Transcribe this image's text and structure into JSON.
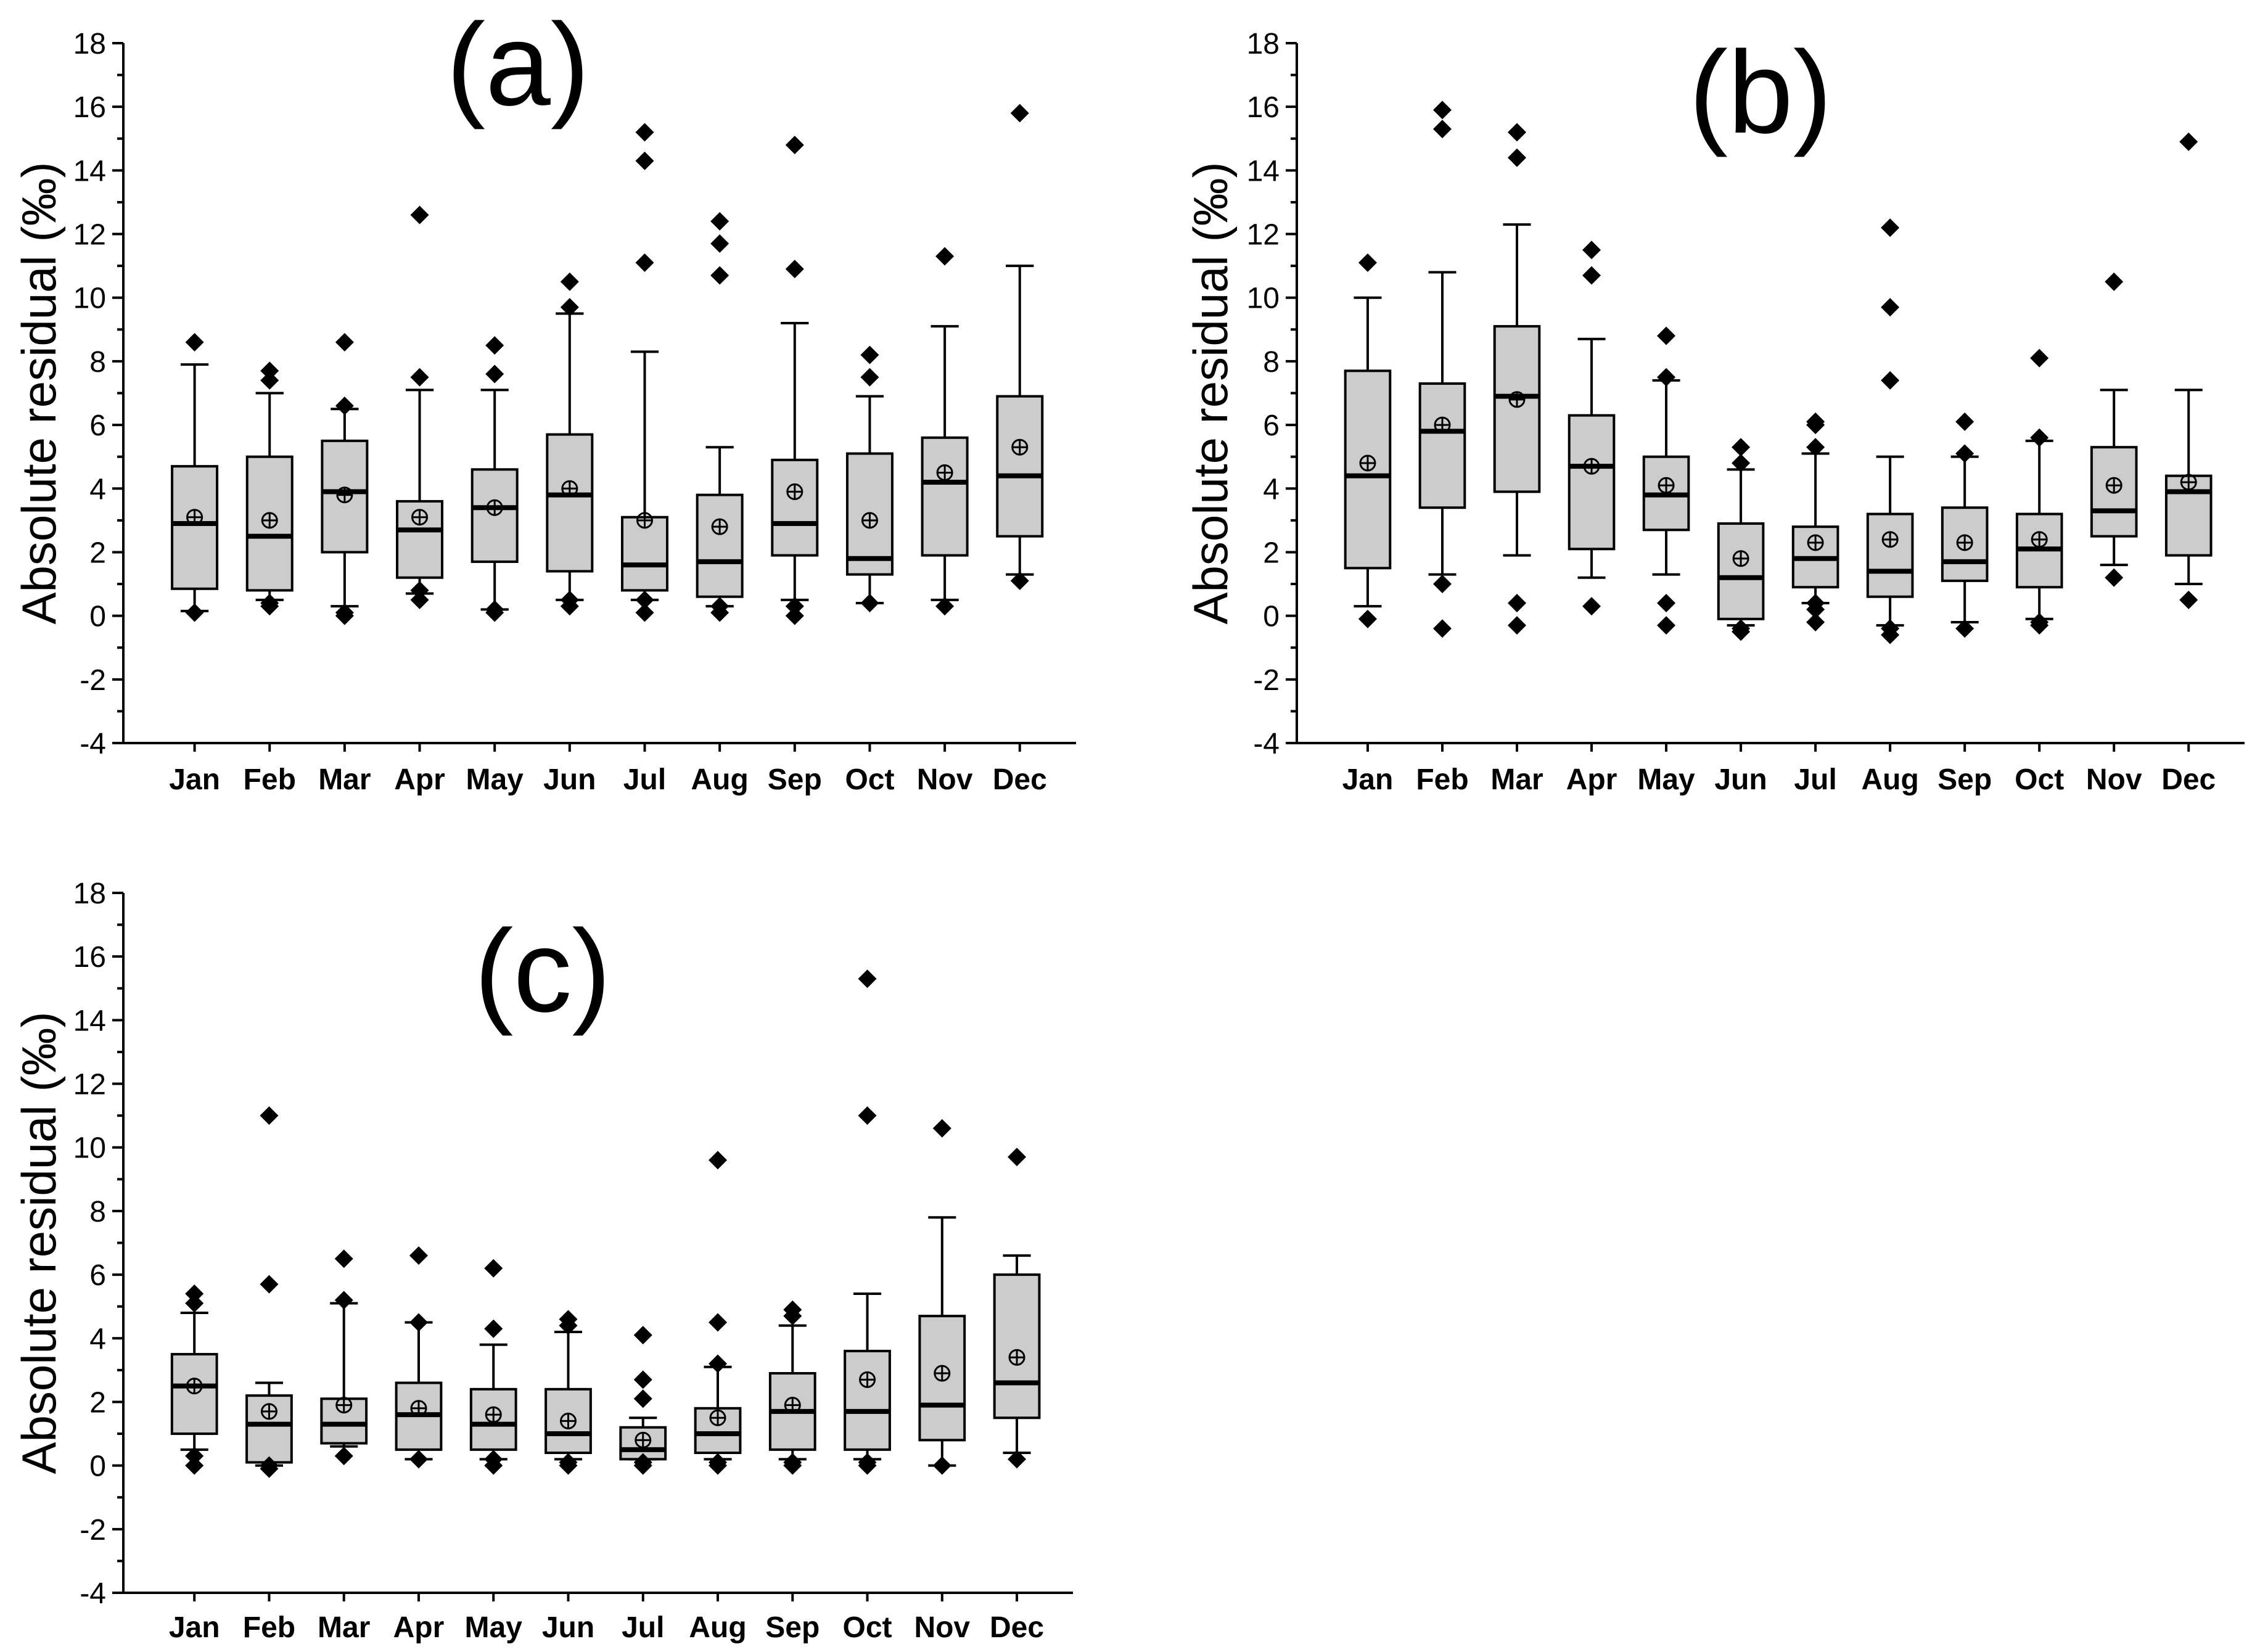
{
  "chart_data": [
    {
      "type": "box",
      "panel_label": "(a)",
      "ylabel": "Absolute residual (‰)",
      "ylim": [
        -4,
        18
      ],
      "yticks": [
        -4,
        -2,
        0,
        2,
        4,
        6,
        8,
        10,
        12,
        14,
        16,
        18
      ],
      "categories": [
        "Jan",
        "Feb",
        "Mar",
        "Apr",
        "May",
        "Jun",
        "Jul",
        "Aug",
        "Sep",
        "Oct",
        "Nov",
        "Dec"
      ],
      "boxes": [
        {
          "month": "Jan",
          "whisker_low": 0.15,
          "q1": 0.85,
          "median": 2.9,
          "q3": 4.7,
          "whisker_high": 7.9,
          "mean": 3.1,
          "outliers": [
            8.6,
            0.1
          ]
        },
        {
          "month": "Feb",
          "whisker_low": 0.5,
          "q1": 0.8,
          "median": 2.5,
          "q3": 5.0,
          "whisker_high": 7.0,
          "mean": 3.0,
          "outliers": [
            7.7,
            7.4,
            0.4,
            0.3
          ]
        },
        {
          "month": "Mar",
          "whisker_low": 0.3,
          "q1": 2.0,
          "median": 3.9,
          "q3": 5.5,
          "whisker_high": 6.5,
          "mean": 3.8,
          "outliers": [
            8.6,
            6.6,
            0.1,
            0.0
          ]
        },
        {
          "month": "Apr",
          "whisker_low": 0.7,
          "q1": 1.2,
          "median": 2.7,
          "q3": 3.6,
          "whisker_high": 7.1,
          "mean": 3.1,
          "outliers": [
            12.6,
            7.5,
            0.8,
            0.5
          ]
        },
        {
          "month": "May",
          "whisker_low": 0.2,
          "q1": 1.7,
          "median": 3.4,
          "q3": 4.6,
          "whisker_high": 7.1,
          "mean": 3.4,
          "outliers": [
            8.5,
            7.6,
            0.2,
            0.1
          ]
        },
        {
          "month": "Jun",
          "whisker_low": 0.5,
          "q1": 1.4,
          "median": 3.8,
          "q3": 5.7,
          "whisker_high": 9.5,
          "mean": 4.0,
          "outliers": [
            10.5,
            9.7,
            0.5,
            0.3
          ]
        },
        {
          "month": "Jul",
          "whisker_low": 0.5,
          "q1": 0.8,
          "median": 1.6,
          "q3": 3.1,
          "whisker_high": 8.3,
          "mean": 3.0,
          "outliers": [
            15.2,
            14.3,
            11.1,
            0.5,
            0.1
          ]
        },
        {
          "month": "Aug",
          "whisker_low": 0.3,
          "q1": 0.6,
          "median": 1.7,
          "q3": 3.8,
          "whisker_high": 5.3,
          "mean": 2.8,
          "outliers": [
            12.4,
            11.7,
            10.7,
            0.3,
            0.1
          ]
        },
        {
          "month": "Sep",
          "whisker_low": 0.5,
          "q1": 1.9,
          "median": 2.9,
          "q3": 4.9,
          "whisker_high": 9.2,
          "mean": 3.9,
          "outliers": [
            14.8,
            10.9,
            0.3,
            0.0
          ]
        },
        {
          "month": "Oct",
          "whisker_low": 0.4,
          "q1": 1.3,
          "median": 1.8,
          "q3": 5.1,
          "whisker_high": 6.9,
          "mean": 3.0,
          "outliers": [
            8.2,
            7.5,
            0.4
          ]
        },
        {
          "month": "Nov",
          "whisker_low": 0.5,
          "q1": 1.9,
          "median": 4.2,
          "q3": 5.6,
          "whisker_high": 9.1,
          "mean": 4.5,
          "outliers": [
            11.3,
            0.3
          ]
        },
        {
          "month": "Dec",
          "whisker_low": 1.3,
          "q1": 2.5,
          "median": 4.4,
          "q3": 6.9,
          "whisker_high": 11.0,
          "mean": 5.3,
          "outliers": [
            15.8,
            1.1
          ]
        }
      ]
    },
    {
      "type": "box",
      "panel_label": "(b)",
      "ylabel": "Absolute residual (‰)",
      "ylim": [
        -4,
        18
      ],
      "yticks": [
        -4,
        -2,
        0,
        2,
        4,
        6,
        8,
        10,
        12,
        14,
        16,
        18
      ],
      "categories": [
        "Jan",
        "Feb",
        "Mar",
        "Apr",
        "May",
        "Jun",
        "Jul",
        "Aug",
        "Sep",
        "Oct",
        "Nov",
        "Dec"
      ],
      "boxes": [
        {
          "month": "Jan",
          "whisker_low": 0.3,
          "q1": 1.5,
          "median": 4.4,
          "q3": 7.7,
          "whisker_high": 10.0,
          "mean": 4.8,
          "outliers": [
            11.1,
            -0.1
          ]
        },
        {
          "month": "Feb",
          "whisker_low": 1.3,
          "q1": 3.4,
          "median": 5.8,
          "q3": 7.3,
          "whisker_high": 10.8,
          "mean": 6.0,
          "outliers": [
            15.9,
            15.3,
            1.0,
            -0.4
          ]
        },
        {
          "month": "Mar",
          "whisker_low": 1.9,
          "q1": 3.9,
          "median": 6.9,
          "q3": 9.1,
          "whisker_high": 12.3,
          "mean": 6.8,
          "outliers": [
            15.2,
            14.4,
            0.4,
            -0.3
          ]
        },
        {
          "month": "Apr",
          "whisker_low": 1.2,
          "q1": 2.1,
          "median": 4.7,
          "q3": 6.3,
          "whisker_high": 8.7,
          "mean": 4.7,
          "outliers": [
            11.5,
            10.7,
            0.3
          ]
        },
        {
          "month": "May",
          "whisker_low": 1.3,
          "q1": 2.7,
          "median": 3.8,
          "q3": 5.0,
          "whisker_high": 7.4,
          "mean": 4.1,
          "outliers": [
            8.8,
            7.5,
            0.4,
            -0.3
          ]
        },
        {
          "month": "Jun",
          "whisker_low": -0.3,
          "q1": -0.1,
          "median": 1.2,
          "q3": 2.9,
          "whisker_high": 4.6,
          "mean": 1.8,
          "outliers": [
            5.3,
            4.8,
            -0.4,
            -0.5
          ]
        },
        {
          "month": "Jul",
          "whisker_low": 0.4,
          "q1": 0.9,
          "median": 1.8,
          "q3": 2.8,
          "whisker_high": 5.1,
          "mean": 2.3,
          "outliers": [
            6.1,
            6.0,
            5.3,
            0.4,
            0.2,
            -0.2
          ]
        },
        {
          "month": "Aug",
          "whisker_low": -0.3,
          "q1": 0.6,
          "median": 1.4,
          "q3": 3.2,
          "whisker_high": 5.0,
          "mean": 2.4,
          "outliers": [
            12.2,
            9.7,
            7.4,
            -0.4,
            -0.6
          ]
        },
        {
          "month": "Sep",
          "whisker_low": -0.2,
          "q1": 1.1,
          "median": 1.7,
          "q3": 3.4,
          "whisker_high": 5.0,
          "mean": 2.3,
          "outliers": [
            6.1,
            5.1,
            -0.4
          ]
        },
        {
          "month": "Oct",
          "whisker_low": -0.1,
          "q1": 0.9,
          "median": 2.1,
          "q3": 3.2,
          "whisker_high": 5.5,
          "mean": 2.4,
          "outliers": [
            8.1,
            5.6,
            -0.2,
            -0.3
          ]
        },
        {
          "month": "Nov",
          "whisker_low": 1.6,
          "q1": 2.5,
          "median": 3.3,
          "q3": 5.3,
          "whisker_high": 7.1,
          "mean": 4.1,
          "outliers": [
            10.5,
            1.2
          ]
        },
        {
          "month": "Dec",
          "whisker_low": 1.0,
          "q1": 1.9,
          "median": 3.9,
          "q3": 4.4,
          "whisker_high": 7.1,
          "mean": 4.2,
          "outliers": [
            14.9,
            0.5
          ]
        }
      ]
    },
    {
      "type": "box",
      "panel_label": "(c)",
      "ylabel": "Absolute residual (‰)",
      "ylim": [
        -4,
        18
      ],
      "yticks": [
        -4,
        -2,
        0,
        2,
        4,
        6,
        8,
        10,
        12,
        14,
        16,
        18
      ],
      "categories": [
        "Jan",
        "Feb",
        "Mar",
        "Apr",
        "May",
        "Jun",
        "Jul",
        "Aug",
        "Sep",
        "Oct",
        "Nov",
        "Dec"
      ],
      "boxes": [
        {
          "month": "Jan",
          "whisker_low": 0.5,
          "q1": 1.0,
          "median": 2.5,
          "q3": 3.5,
          "whisker_high": 4.8,
          "mean": 2.5,
          "outliers": [
            5.4,
            5.1,
            0.3,
            0.0
          ]
        },
        {
          "month": "Feb",
          "whisker_low": 0.0,
          "q1": 0.1,
          "median": 1.3,
          "q3": 2.2,
          "whisker_high": 2.6,
          "mean": 1.7,
          "outliers": [
            11.0,
            5.7,
            0.0,
            -0.1
          ]
        },
        {
          "month": "Mar",
          "whisker_low": 0.6,
          "q1": 0.7,
          "median": 1.3,
          "q3": 2.1,
          "whisker_high": 5.1,
          "mean": 1.9,
          "outliers": [
            6.5,
            5.2,
            0.3
          ]
        },
        {
          "month": "Apr",
          "whisker_low": 0.2,
          "q1": 0.5,
          "median": 1.6,
          "q3": 2.6,
          "whisker_high": 4.5,
          "mean": 1.8,
          "outliers": [
            6.6,
            4.5,
            0.2
          ]
        },
        {
          "month": "May",
          "whisker_low": 0.2,
          "q1": 0.5,
          "median": 1.3,
          "q3": 2.4,
          "whisker_high": 3.8,
          "mean": 1.6,
          "outliers": [
            6.2,
            4.3,
            0.2,
            0.0
          ]
        },
        {
          "month": "Jun",
          "whisker_low": 0.2,
          "q1": 0.4,
          "median": 1.0,
          "q3": 2.4,
          "whisker_high": 4.2,
          "mean": 1.4,
          "outliers": [
            4.6,
            4.4,
            0.1,
            0.0
          ]
        },
        {
          "month": "Jul",
          "whisker_low": 0.2,
          "q1": 0.2,
          "median": 0.5,
          "q3": 1.2,
          "whisker_high": 1.5,
          "mean": 0.8,
          "outliers": [
            4.1,
            2.7,
            2.1,
            0.1,
            0.0
          ]
        },
        {
          "month": "Aug",
          "whisker_low": 0.2,
          "q1": 0.4,
          "median": 1.0,
          "q3": 1.8,
          "whisker_high": 3.1,
          "mean": 1.5,
          "outliers": [
            9.6,
            4.5,
            3.2,
            0.1,
            0.0
          ]
        },
        {
          "month": "Sep",
          "whisker_low": 0.2,
          "q1": 0.5,
          "median": 1.7,
          "q3": 2.9,
          "whisker_high": 4.4,
          "mean": 1.9,
          "outliers": [
            4.9,
            4.7,
            0.1,
            0.0
          ]
        },
        {
          "month": "Oct",
          "whisker_low": 0.2,
          "q1": 0.5,
          "median": 1.7,
          "q3": 3.6,
          "whisker_high": 5.4,
          "mean": 2.7,
          "outliers": [
            15.3,
            11.0,
            0.1,
            0.0
          ]
        },
        {
          "month": "Nov",
          "whisker_low": 0.0,
          "q1": 0.8,
          "median": 1.9,
          "q3": 4.7,
          "whisker_high": 7.8,
          "mean": 2.9,
          "outliers": [
            10.6,
            0.0
          ]
        },
        {
          "month": "Dec",
          "whisker_low": 0.4,
          "q1": 1.5,
          "median": 2.6,
          "q3": 6.0,
          "whisker_high": 6.6,
          "mean": 3.4,
          "outliers": [
            9.7,
            0.2
          ]
        }
      ]
    }
  ]
}
